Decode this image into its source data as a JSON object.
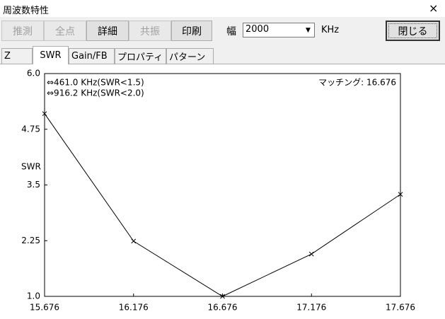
{
  "window": {
    "title": "周波数特性",
    "close": "×"
  },
  "toolbar": {
    "buttons": [
      "推測",
      "全点",
      "詳細",
      "共振",
      "印刷"
    ],
    "width_label": "幅",
    "width_value": "2000",
    "unit": "KHz",
    "close_button": "閉じる"
  },
  "tabs": [
    "Z",
    "SWR",
    "Gain/FB",
    "プロパティ",
    "パターン"
  ],
  "chart_data": {
    "type": "line",
    "ylabel": "SWR",
    "annotations": [
      "⇔461.0 KHz(SWR<1.5)",
      "⇔916.2 KHz(SWR<2.0)",
      "マッチング: 16.676"
    ],
    "x": [
      15.676,
      16.176,
      16.676,
      17.176,
      17.676
    ],
    "values": [
      5.1,
      2.24,
      1.0,
      1.95,
      3.29
    ],
    "color": "#000000",
    "xlim": [
      15.676,
      17.676
    ],
    "xticks": [
      15.676,
      16.176,
      16.676,
      17.176,
      17.676
    ],
    "ylim": [
      1,
      6
    ],
    "yticks": [
      {
        "value": 1,
        "label": "1.0"
      },
      2.25,
      3.5,
      4.75,
      {
        "value": 6,
        "label": "6.0"
      }
    ]
  }
}
